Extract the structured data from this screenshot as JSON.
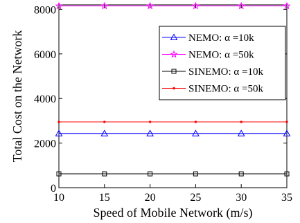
{
  "chart_data": {
    "type": "line",
    "xlabel": "Speed of Mobile Network (m/s)",
    "ylabel": "Total Cost on the Network",
    "xlim": [
      10,
      35
    ],
    "ylim": [
      0,
      8200
    ],
    "x_ticks": [
      "10",
      "15",
      "20",
      "25",
      "30",
      "35"
    ],
    "y_ticks": [
      "0",
      "2000",
      "4000",
      "6000",
      "8000"
    ],
    "x": [
      10,
      15,
      20,
      25,
      30,
      35
    ],
    "grid": false,
    "legend_position": "top-right",
    "series": [
      {
        "name": "NEMO: α =10k",
        "values": [
          2430,
          2430,
          2430,
          2430,
          2430,
          2430
        ],
        "color": "#0000ff",
        "marker": "triangle"
      },
      {
        "name": "NEMO: α =50k",
        "values": [
          8150,
          8150,
          8150,
          8150,
          8150,
          8150
        ],
        "color": "#ff00ff",
        "marker": "star"
      },
      {
        "name": "SINEMO: α =10k",
        "values": [
          620,
          620,
          620,
          620,
          620,
          620
        ],
        "color": "#000000",
        "marker": "square"
      },
      {
        "name": "SINEMO: α =50k",
        "values": [
          2950,
          2950,
          2950,
          2950,
          2950,
          2950
        ],
        "color": "#ff0000",
        "marker": "dot"
      }
    ]
  }
}
